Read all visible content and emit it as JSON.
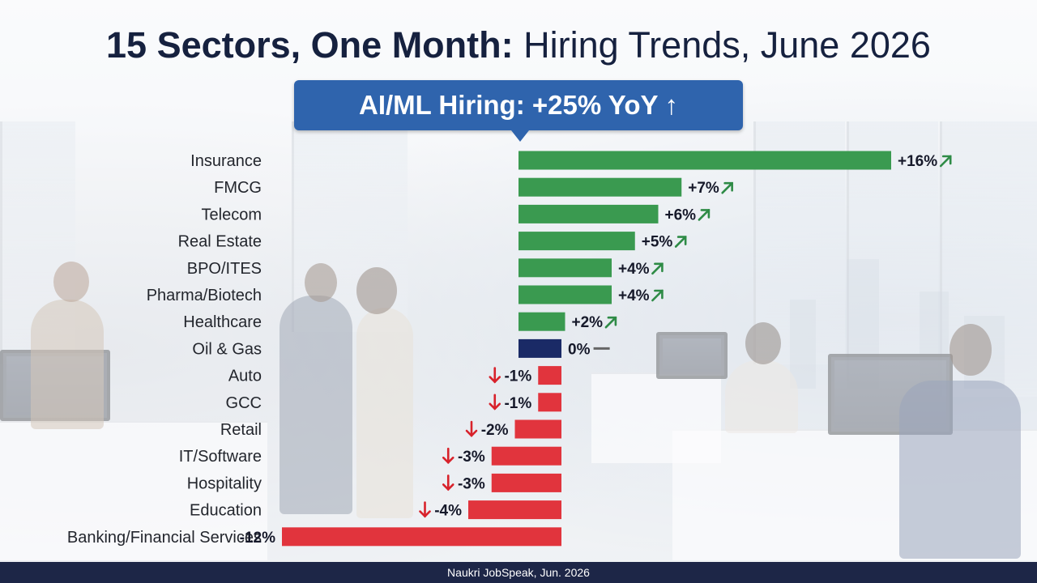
{
  "title": {
    "bold": "15 Sectors, One Month:",
    "regular": "Hiring Trends, June 2026"
  },
  "callout": {
    "text": "AI/ML Hiring: +25% YoY",
    "arrow": "↑"
  },
  "colors": {
    "positive": "#3a9a50",
    "neutral": "#1a2a66",
    "negative": "#e1343d",
    "up_arrow": "#2e8b46",
    "down_arrow": "#d8222b",
    "flat_mark": "#666666",
    "footer_bg": "#1d2647",
    "callout_bg": "#2f64ad"
  },
  "chart_data": {
    "type": "bar",
    "orientation": "horizontal",
    "unit": "%",
    "categories": [
      "Insurance",
      "FMCG",
      "Telecom",
      "Real Estate",
      "BPO/ITES",
      "Pharma/Biotech",
      "Healthcare",
      "Oil & Gas",
      "Auto",
      "GCC",
      "Retail",
      "IT/Software",
      "Hospitality",
      "Education",
      "Banking/Financial Services"
    ],
    "values": [
      16,
      7,
      6,
      5,
      4,
      4,
      2,
      0,
      -1,
      -1,
      -2,
      -3,
      -3,
      -4,
      -12
    ],
    "data_labels": [
      "+16%",
      "+7%",
      "+6%",
      "+5%",
      "+4%",
      "+4%",
      "+2%",
      "0%",
      "-1%",
      "-1%",
      "-2%",
      "-3%",
      "-3%",
      "-4%",
      "-12%"
    ],
    "trend_icons": [
      "up-arrow",
      "up-arrow",
      "up-arrow",
      "up-arrow",
      "up-arrow",
      "up-arrow",
      "up-arrow",
      "flat-dash",
      "down-arrow",
      "down-arrow",
      "down-arrow",
      "down-arrow",
      "down-arrow",
      "down-arrow",
      "none"
    ],
    "xlim": [
      -12,
      16
    ],
    "grid": false,
    "legend": "none"
  },
  "footer": {
    "source": "Naukri JobSpeak, Jun. 2026"
  }
}
